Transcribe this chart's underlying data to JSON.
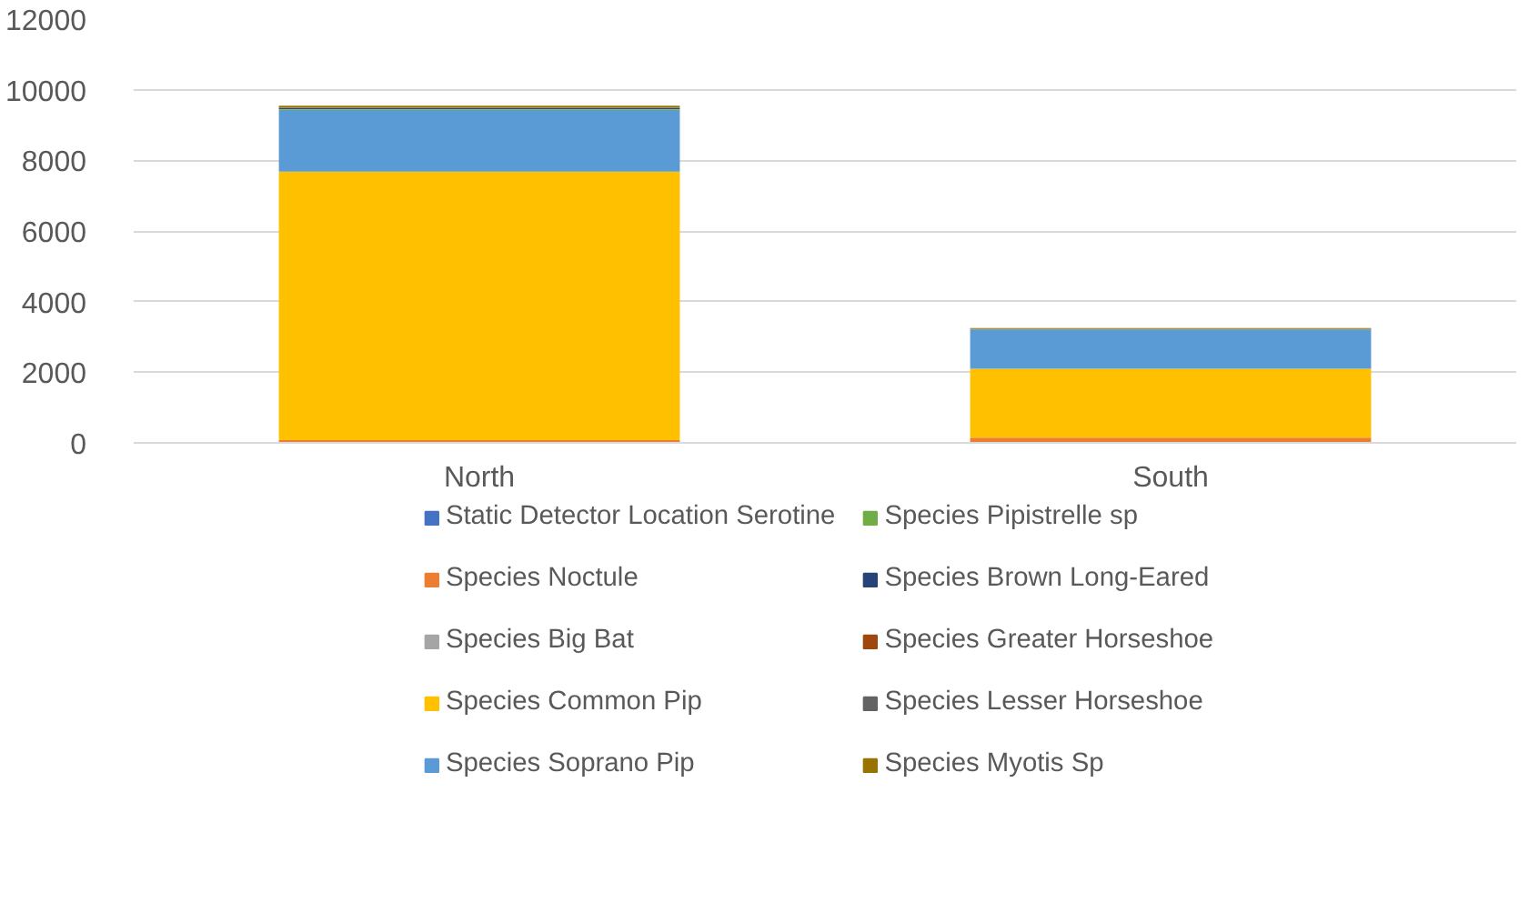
{
  "chart_data": {
    "type": "bar",
    "stacked": true,
    "categories": [
      "North",
      "South"
    ],
    "series": [
      {
        "name": "Static Detector Location Serotine",
        "color": "#4472c4",
        "values": [
          null,
          null
        ]
      },
      {
        "name": "Species Noctule",
        "color": "#ed7d31",
        "values": [
          80,
          150
        ]
      },
      {
        "name": "Species Big Bat",
        "color": "#a5a5a5",
        "values": [
          0,
          0
        ]
      },
      {
        "name": "Species Common Pip",
        "color": "#ffc000",
        "values": [
          7600,
          1950
        ]
      },
      {
        "name": "Species Soprano Pip",
        "color": "#5b9bd5",
        "values": [
          1750,
          1100
        ]
      },
      {
        "name": "Species Pipistrelle sp",
        "color": "#70ad47",
        "values": [
          20,
          10
        ]
      },
      {
        "name": "Species Brown Long-Eared",
        "color": "#264478",
        "values": [
          30,
          10
        ]
      },
      {
        "name": "Species Greater Horseshoe",
        "color": "#9e480e",
        "values": [
          0,
          0
        ]
      },
      {
        "name": "Species Lesser Horseshoe",
        "color": "#636363",
        "values": [
          10,
          10
        ]
      },
      {
        "name": "Species Myotis Sp",
        "color": "#997300",
        "values": [
          60,
          20
        ]
      }
    ],
    "ylim": [
      0,
      12000
    ],
    "yticks": [
      0,
      2000,
      4000,
      6000,
      8000,
      10000,
      12000
    ],
    "grid": "y",
    "legend": "bottom"
  }
}
